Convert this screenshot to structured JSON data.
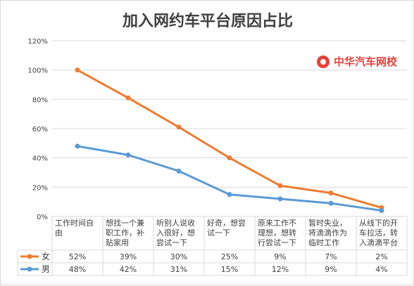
{
  "chart_data": {
    "type": "line",
    "title": "加入网约车平台原因占比",
    "categories": [
      [
        "工作时间自",
        "由"
      ],
      [
        "想找一个兼",
        "职工作，补",
        "贴家用"
      ],
      [
        "听别人说收",
        "入很好，想",
        "尝试一下"
      ],
      [
        "好奇，想尝",
        "试一下"
      ],
      [
        "原来工作不",
        "理想，想转",
        "行尝试一下"
      ],
      [
        "暂时失业，",
        "将滴滴作为",
        "临时工作"
      ],
      [
        "从线下的开",
        "车拉活，转",
        "入滴滴平台"
      ]
    ],
    "series": [
      {
        "name": "女",
        "values": [
          100,
          81,
          61,
          40,
          21,
          16,
          6
        ],
        "color": "#ED7D31",
        "table": [
          "52%",
          "39%",
          "30%",
          "25%",
          "9%",
          "7%",
          "2%"
        ]
      },
      {
        "name": "男",
        "values": [
          48,
          42,
          31,
          15,
          12,
          9,
          4
        ],
        "color": "#5B9BD5",
        "table": [
          "48%",
          "42%",
          "31%",
          "15%",
          "12%",
          "9%",
          "4%"
        ]
      }
    ],
    "yticks": [
      "0%",
      "20%",
      "40%",
      "60%",
      "80%",
      "100%",
      "120%"
    ],
    "ylim": [
      0,
      120
    ],
    "grid": true,
    "legend": "data-table"
  },
  "watermark": {
    "text": "中华汽车网校"
  }
}
